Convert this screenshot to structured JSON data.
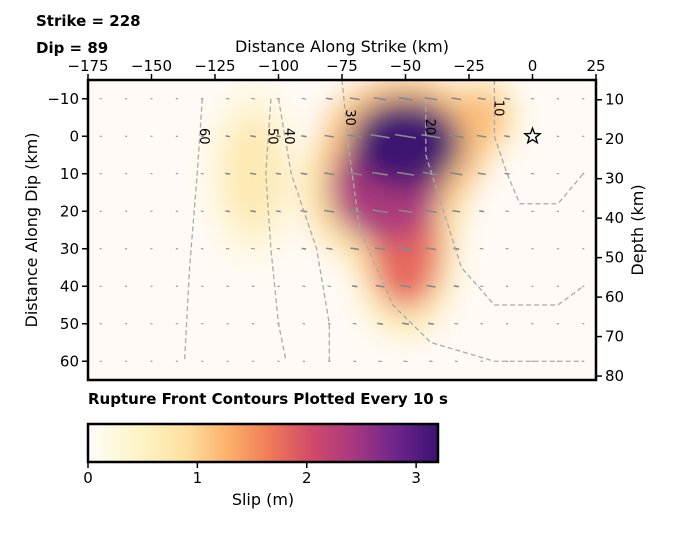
{
  "annotations": {
    "strike": "Strike = 228",
    "dip": "Dip = 89",
    "rupture_note": "Rupture Front Contours Plotted Every 10 s"
  },
  "chart_data": {
    "type": "heatmap",
    "xlabel": "Distance Along Strike (km)",
    "ylabel": "Distance Along Dip (km)",
    "y2label": "Depth (km)",
    "xlim": [
      -175,
      25
    ],
    "ylim": [
      65,
      -15
    ],
    "y2lim": [
      81,
      5
    ],
    "x_ticks": [
      -175,
      -150,
      -125,
      -100,
      -75,
      -50,
      -25,
      0,
      25
    ],
    "y_ticks": [
      -10,
      0,
      10,
      20,
      30,
      40,
      50,
      60
    ],
    "y2_ticks": [
      10,
      20,
      30,
      40,
      50,
      60,
      70,
      80
    ],
    "hypocenter": {
      "x": 0,
      "y": 0
    },
    "slip_patches": [
      {
        "x": -50,
        "y": 2,
        "rx": 22,
        "ry": 12,
        "slip": 3.2
      },
      {
        "x": -58,
        "y": 14,
        "rx": 22,
        "ry": 14,
        "slip": 2.4
      },
      {
        "x": -50,
        "y": 30,
        "rx": 14,
        "ry": 16,
        "slip": 1.8
      },
      {
        "x": -110,
        "y": 10,
        "rx": 12,
        "ry": 16,
        "slip": 0.7
      },
      {
        "x": -20,
        "y": -5,
        "rx": 10,
        "ry": 8,
        "slip": 1.2
      }
    ],
    "rupture_contours": [
      {
        "label": "10",
        "points": [
          [
            -15,
            -15
          ],
          [
            -15,
            0
          ],
          [
            -10,
            10
          ],
          [
            -5,
            18
          ],
          [
            10,
            18
          ],
          [
            20,
            10
          ]
        ]
      },
      {
        "label": "20",
        "points": [
          [
            -42,
            -10
          ],
          [
            -42,
            5
          ],
          [
            -35,
            20
          ],
          [
            -28,
            35
          ],
          [
            -15,
            45
          ],
          [
            10,
            45
          ],
          [
            20,
            40
          ]
        ]
      },
      {
        "label": "30",
        "points": [
          [
            -75,
            -15
          ],
          [
            -72,
            5
          ],
          [
            -68,
            25
          ],
          [
            -55,
            45
          ],
          [
            -40,
            55
          ],
          [
            -15,
            60
          ],
          [
            20,
            60
          ]
        ]
      },
      {
        "label": "40",
        "points": [
          [
            -100,
            -10
          ],
          [
            -95,
            10
          ],
          [
            -85,
            30
          ],
          [
            -80,
            50
          ],
          [
            -80,
            60
          ]
        ]
      },
      {
        "label": "50",
        "points": [
          [
            -103,
            -10
          ],
          [
            -105,
            10
          ],
          [
            -103,
            30
          ],
          [
            -100,
            50
          ],
          [
            -97,
            60
          ]
        ]
      },
      {
        "label": "60",
        "points": [
          [
            -130,
            -10
          ],
          [
            -132,
            10
          ],
          [
            -135,
            35
          ],
          [
            -137,
            60
          ]
        ]
      }
    ],
    "colorbar": {
      "label": "Slip (m)",
      "ticks": [
        0,
        1,
        2,
        3
      ],
      "range": [
        0,
        3.2
      ]
    }
  }
}
